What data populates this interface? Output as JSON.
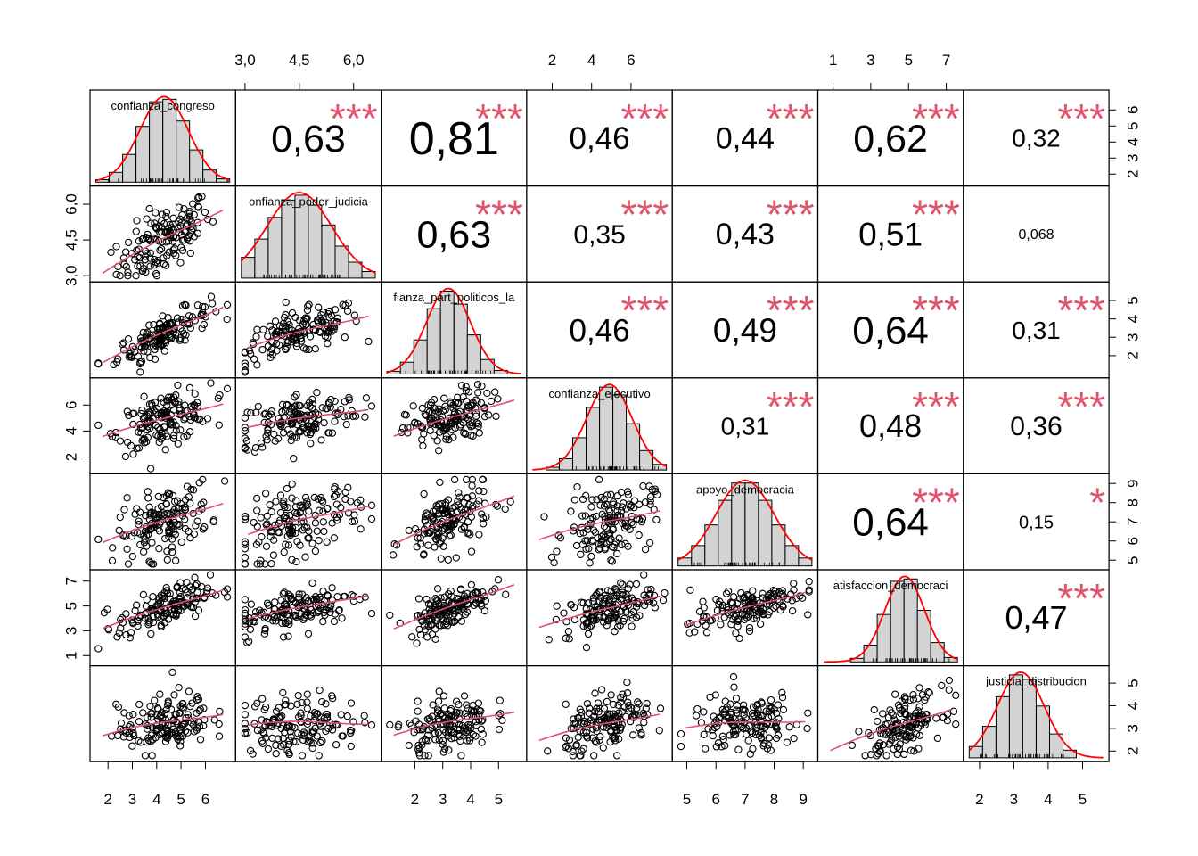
{
  "chart_data": {
    "type": "scatter",
    "title": "",
    "variables": [
      "confianza_congreso",
      "confianza_poder_judicial",
      "confianza_part_politicos_la",
      "confianza_ejecutivo",
      "apoyo_democracia",
      "satisfaccion_democracia",
      "justicia_distribucion"
    ],
    "diagonal_labels": [
      "confianza_congreso",
      "onfianza_poder_judicia",
      "fianza_part_politicos_la",
      "confianza_ejecutivo",
      "apoyo_democracia",
      "atisfaccion_democraci",
      "justicia_distribucion"
    ],
    "ranges": [
      [
        1.5,
        7.0
      ],
      [
        2.9,
        6.6
      ],
      [
        1.0,
        5.8
      ],
      [
        1.0,
        7.8
      ],
      [
        4.7,
        9.3
      ],
      [
        0.5,
        7.6
      ],
      [
        1.7,
        5.6
      ]
    ],
    "ticks": [
      [
        "2",
        "3",
        "4",
        "5",
        "6"
      ],
      [
        "3,0",
        "4,5",
        "6,0"
      ],
      [
        "2",
        "3",
        "4",
        "5"
      ],
      [
        "2",
        "4",
        "6"
      ],
      [
        "5",
        "6",
        "7",
        "8",
        "9"
      ],
      [
        "1",
        "3",
        "5",
        "7"
      ],
      [
        "2",
        "3",
        "4",
        "5"
      ]
    ],
    "tick_values": [
      [
        2,
        3,
        4,
        5,
        6
      ],
      [
        3.0,
        4.5,
        6.0
      ],
      [
        2,
        3,
        4,
        5
      ],
      [
        2,
        4,
        6
      ],
      [
        5,
        6,
        7,
        8,
        9
      ],
      [
        1,
        3,
        5,
        7
      ],
      [
        2,
        3,
        4,
        5
      ]
    ],
    "correlations": [
      {
        "row": 0,
        "col": 1,
        "value": "0,63",
        "stars": "***"
      },
      {
        "row": 0,
        "col": 2,
        "value": "0,81",
        "stars": "***"
      },
      {
        "row": 0,
        "col": 3,
        "value": "0,46",
        "stars": "***"
      },
      {
        "row": 0,
        "col": 4,
        "value": "0,44",
        "stars": "***"
      },
      {
        "row": 0,
        "col": 5,
        "value": "0,62",
        "stars": "***"
      },
      {
        "row": 0,
        "col": 6,
        "value": "0,32",
        "stars": "***"
      },
      {
        "row": 1,
        "col": 2,
        "value": "0,63",
        "stars": "***"
      },
      {
        "row": 1,
        "col": 3,
        "value": "0,35",
        "stars": "***"
      },
      {
        "row": 1,
        "col": 4,
        "value": "0,43",
        "stars": "***"
      },
      {
        "row": 1,
        "col": 5,
        "value": "0,51",
        "stars": "***"
      },
      {
        "row": 1,
        "col": 6,
        "value": "0,068",
        "stars": ""
      },
      {
        "row": 2,
        "col": 3,
        "value": "0,46",
        "stars": "***"
      },
      {
        "row": 2,
        "col": 4,
        "value": "0,49",
        "stars": "***"
      },
      {
        "row": 2,
        "col": 5,
        "value": "0,64",
        "stars": "***"
      },
      {
        "row": 2,
        "col": 6,
        "value": "0,31",
        "stars": "***"
      },
      {
        "row": 3,
        "col": 4,
        "value": "0,31",
        "stars": "***"
      },
      {
        "row": 3,
        "col": 5,
        "value": "0,48",
        "stars": "***"
      },
      {
        "row": 3,
        "col": 6,
        "value": "0,36",
        "stars": "***"
      },
      {
        "row": 4,
        "col": 5,
        "value": "0,64",
        "stars": "***"
      },
      {
        "row": 4,
        "col": 6,
        "value": "0,15",
        "stars": "*"
      },
      {
        "row": 5,
        "col": 6,
        "value": "0,47",
        "stars": "***"
      }
    ],
    "colors": {
      "stars": "#DF536B",
      "density": "#FF0000",
      "smooth": "#DF536B",
      "hist_fill": "#D3D3D3",
      "frame": "#000000"
    }
  }
}
